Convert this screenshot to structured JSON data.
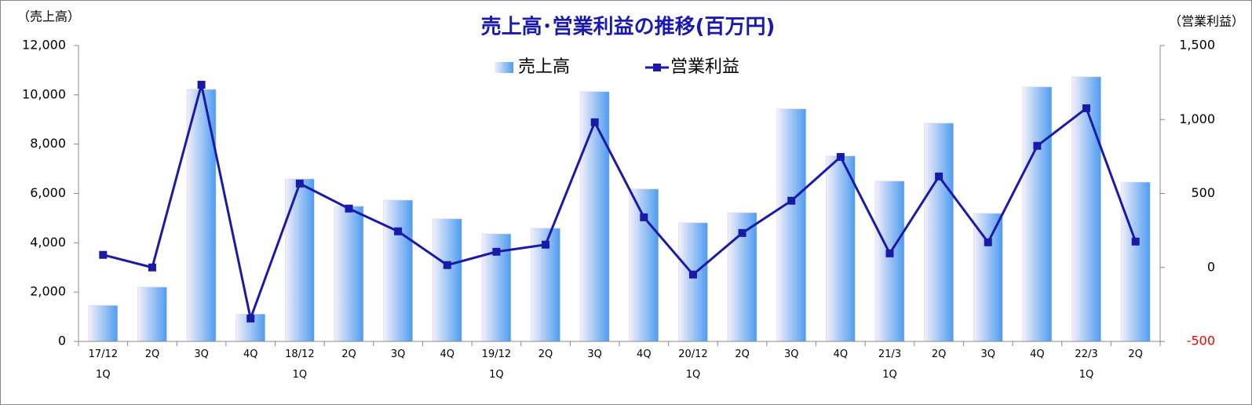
{
  "chart_data": {
    "type": "bar_line",
    "title": "売上高･営業利益の推移(百万円)",
    "y_label": "（売上高）",
    "y2_label": "（営業利益）",
    "categories": [
      "17/12\n1Q",
      "2Q",
      "3Q",
      "4Q",
      "18/12\n1Q",
      "2Q",
      "3Q",
      "4Q",
      "19/12\n1Q",
      "2Q",
      "3Q",
      "4Q",
      "20/12\n1Q",
      "2Q",
      "3Q",
      "4Q",
      "21/3\n1Q",
      "2Q",
      "3Q",
      "4Q",
      "22/3\n1Q",
      "2Q"
    ],
    "series": [
      {
        "name": "売上高",
        "type": "bar",
        "color": "#4d9cf0",
        "values": [
          1460,
          2200,
          10220,
          1110,
          6590,
          5480,
          5730,
          4970,
          4360,
          4590,
          10130,
          6180,
          4810,
          5220,
          9430,
          7520,
          6500,
          8850,
          5190,
          10320,
          10730,
          6460
        ]
      },
      {
        "name": "営業利益",
        "type": "line",
        "axis": "y2",
        "color": "#1a1aa8",
        "values": [
          85,
          0,
          1235,
          -345,
          567,
          398,
          244,
          16,
          106,
          154,
          981,
          339,
          -48,
          233,
          451,
          747,
          95,
          615,
          170,
          822,
          1076,
          175
        ]
      }
    ],
    "ylim": [
      0,
      12000
    ],
    "yticks": [
      0,
      {
        "value": 2000,
        "label": "2,000"
      },
      {
        "value": 4000,
        "label": "4,000"
      },
      {
        "value": 6000,
        "label": "6,000"
      },
      {
        "value": 8000,
        "label": "8,000"
      },
      {
        "value": 10000,
        "label": "10,000"
      },
      {
        "value": 12000,
        "label": "12,000"
      }
    ],
    "y2lim": [
      -500,
      1500
    ],
    "y2ticks": [
      -500,
      0,
      500,
      {
        "value": 1000,
        "label": "1,000"
      },
      {
        "value": 1500,
        "label": "1,500"
      }
    ],
    "y2_negative_tick_color": "#ff0000",
    "legend": "top",
    "grid": false
  }
}
